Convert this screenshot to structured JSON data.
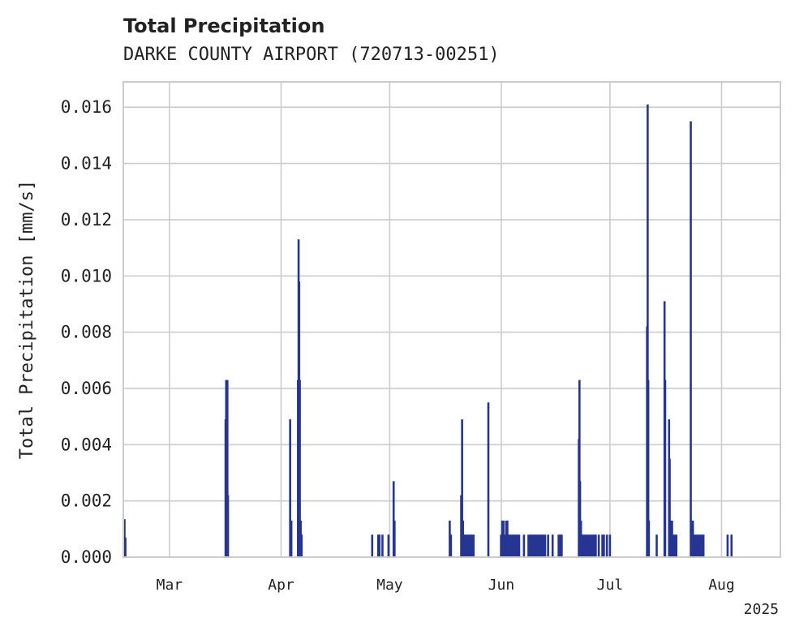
{
  "chart_data": {
    "type": "bar",
    "title": "Total Precipitation",
    "subtitle": "DARKE COUNTY AIRPORT (720713-00251)",
    "ylabel": "Total Precipitation [mm/s]",
    "xlabel": "",
    "x_year_label": "2025",
    "ylim": [
      0,
      0.0169
    ],
    "xlim_days": [
      15.7,
      233.5
    ],
    "grid": true,
    "bar_color": "#263592",
    "yticks": [
      {
        "value": 0.0,
        "label": "0.000"
      },
      {
        "value": 0.002,
        "label": "0.002"
      },
      {
        "value": 0.004,
        "label": "0.004"
      },
      {
        "value": 0.006,
        "label": "0.006"
      },
      {
        "value": 0.008,
        "label": "0.008"
      },
      {
        "value": 0.01,
        "label": "0.010"
      },
      {
        "value": 0.012,
        "label": "0.012"
      },
      {
        "value": 0.014,
        "label": "0.014"
      },
      {
        "value": 0.016,
        "label": "0.016"
      }
    ],
    "xticks": [
      {
        "day": 31,
        "label": "Mar"
      },
      {
        "day": 68,
        "label": "Apr"
      },
      {
        "day": 104,
        "label": "May"
      },
      {
        "day": 141,
        "label": "Jun"
      },
      {
        "day": 177,
        "label": "Jul"
      },
      {
        "day": 214,
        "label": "Aug"
      }
    ],
    "series": [
      {
        "name": "Total Precipitation",
        "x_unit": "days since 2025-01-31",
        "points": [
          [
            16.1,
            0.00135
          ],
          [
            16.4,
            0.0007
          ],
          [
            49.6,
            0.0049
          ],
          [
            49.8,
            0.0063
          ],
          [
            50.0,
            0.0063
          ],
          [
            50.2,
            0.0063
          ],
          [
            50.4,
            0.0022
          ],
          [
            71.0,
            0.0049
          ],
          [
            71.4,
            0.0013
          ],
          [
            73.6,
            0.0063
          ],
          [
            73.8,
            0.0113
          ],
          [
            74.0,
            0.0098
          ],
          [
            74.2,
            0.0063
          ],
          [
            74.5,
            0.0013
          ],
          [
            74.8,
            0.0008
          ],
          [
            98.2,
            0.0008
          ],
          [
            100.2,
            0.0008
          ],
          [
            100.6,
            0.0008
          ],
          [
            101.6,
            0.0008
          ],
          [
            103.6,
            0.0008
          ],
          [
            105.3,
            0.0027
          ],
          [
            105.6,
            0.0013
          ],
          [
            123.9,
            0.0013
          ],
          [
            124.3,
            0.0008
          ],
          [
            127.7,
            0.0022
          ],
          [
            128.0,
            0.0049
          ],
          [
            128.3,
            0.0013
          ],
          [
            128.7,
            0.0008
          ],
          [
            129.2,
            0.0008
          ],
          [
            129.7,
            0.0008
          ],
          [
            130.3,
            0.0008
          ],
          [
            130.8,
            0.0008
          ],
          [
            131.3,
            0.0008
          ],
          [
            131.8,
            0.0008
          ],
          [
            136.7,
            0.0055
          ],
          [
            140.9,
            0.0008
          ],
          [
            141.3,
            0.0013
          ],
          [
            141.7,
            0.0013
          ],
          [
            142.1,
            0.0008
          ],
          [
            142.6,
            0.0013
          ],
          [
            143.0,
            0.0013
          ],
          [
            143.4,
            0.0008
          ],
          [
            143.9,
            0.0008
          ],
          [
            144.4,
            0.0008
          ],
          [
            144.9,
            0.0008
          ],
          [
            145.4,
            0.0008
          ],
          [
            145.9,
            0.0008
          ],
          [
            146.4,
            0.0008
          ],
          [
            146.9,
            0.0008
          ],
          [
            148.5,
            0.0008
          ],
          [
            150.0,
            0.0008
          ],
          [
            150.5,
            0.0008
          ],
          [
            151.0,
            0.0008
          ],
          [
            151.5,
            0.0008
          ],
          [
            152.0,
            0.0008
          ],
          [
            152.5,
            0.0008
          ],
          [
            153.0,
            0.0008
          ],
          [
            153.5,
            0.0008
          ],
          [
            154.0,
            0.0008
          ],
          [
            154.5,
            0.0008
          ],
          [
            155.0,
            0.0008
          ],
          [
            155.5,
            0.0008
          ],
          [
            156.5,
            0.0008
          ],
          [
            158.0,
            0.0008
          ],
          [
            160.0,
            0.0008
          ],
          [
            160.5,
            0.0008
          ],
          [
            161.0,
            0.0008
          ],
          [
            166.7,
            0.0042
          ],
          [
            166.9,
            0.0063
          ],
          [
            167.1,
            0.0027
          ],
          [
            167.4,
            0.0013
          ],
          [
            167.8,
            0.0008
          ],
          [
            168.3,
            0.0008
          ],
          [
            168.8,
            0.0008
          ],
          [
            169.3,
            0.0008
          ],
          [
            169.8,
            0.0008
          ],
          [
            170.3,
            0.0008
          ],
          [
            170.8,
            0.0008
          ],
          [
            171.3,
            0.0008
          ],
          [
            171.8,
            0.0008
          ],
          [
            172.3,
            0.0008
          ],
          [
            173.3,
            0.0008
          ],
          [
            174.5,
            0.0008
          ],
          [
            175.0,
            0.0008
          ],
          [
            176.0,
            0.0008
          ],
          [
            177.0,
            0.0008
          ],
          [
            189.3,
            0.0082
          ],
          [
            189.5,
            0.0161
          ],
          [
            189.7,
            0.0063
          ],
          [
            189.9,
            0.0013
          ],
          [
            192.5,
            0.0008
          ],
          [
            195.1,
            0.0091
          ],
          [
            195.3,
            0.0063
          ],
          [
            196.6,
            0.0049
          ],
          [
            196.8,
            0.0035
          ],
          [
            197.0,
            0.0013
          ],
          [
            197.6,
            0.0013
          ],
          [
            198.0,
            0.0008
          ],
          [
            198.5,
            0.0008
          ],
          [
            199.0,
            0.0008
          ],
          [
            203.8,
            0.0155
          ],
          [
            204.1,
            0.0013
          ],
          [
            204.5,
            0.0013
          ],
          [
            205.0,
            0.0008
          ],
          [
            205.5,
            0.0008
          ],
          [
            206.0,
            0.0008
          ],
          [
            206.5,
            0.0008
          ],
          [
            207.0,
            0.0008
          ],
          [
            207.5,
            0.0008
          ],
          [
            208.0,
            0.0008
          ],
          [
            216.0,
            0.0008
          ],
          [
            217.3,
            0.0008
          ]
        ]
      }
    ]
  }
}
